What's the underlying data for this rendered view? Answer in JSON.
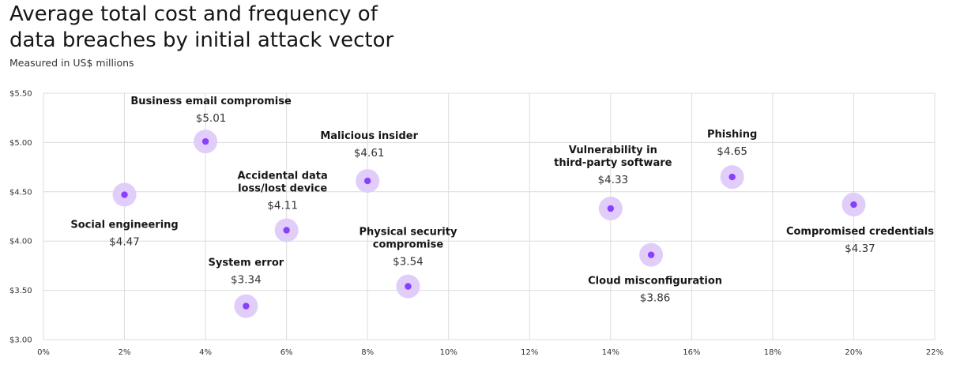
{
  "header": {
    "title_line1": "Average total cost and frequency of",
    "title_line2": "data breaches by initial attack vector",
    "subtitle": "Measured in US$ millions"
  },
  "colors": {
    "halo": "#e1cdfa",
    "dot": "#8a3ffc",
    "grid": "#dcdcdc"
  },
  "chart_data": {
    "type": "scatter",
    "title": "Average total cost and frequency of data breaches by initial attack vector",
    "subtitle": "Measured in US$ millions",
    "xlabel": "",
    "ylabel": "",
    "xlim": [
      0,
      22
    ],
    "ylim": [
      3.0,
      5.5
    ],
    "x_ticks": [
      0,
      2,
      4,
      6,
      8,
      10,
      12,
      14,
      16,
      18,
      20,
      22
    ],
    "x_tick_labels": [
      "0%",
      "2%",
      "4%",
      "6%",
      "8%",
      "10%",
      "12%",
      "14%",
      "16%",
      "18%",
      "20%",
      "22%"
    ],
    "y_ticks": [
      3.0,
      3.5,
      4.0,
      4.5,
      5.0,
      5.5
    ],
    "y_tick_labels": [
      "$3.00",
      "$3.50",
      "$4.00",
      "$4.50",
      "$5.00",
      "$5.50"
    ],
    "grid": true,
    "points": [
      {
        "name_lines": [
          "Social engineering"
        ],
        "value_label": "$4.47",
        "x": 2,
        "y": 4.47
      },
      {
        "name_lines": [
          "Business email compromise"
        ],
        "value_label": "$5.01",
        "x": 4,
        "y": 5.01
      },
      {
        "name_lines": [
          "System error"
        ],
        "value_label": "$3.34",
        "x": 5,
        "y": 3.34
      },
      {
        "name_lines": [
          "Accidental data",
          "loss/lost device"
        ],
        "value_label": "$4.11",
        "x": 6,
        "y": 4.11
      },
      {
        "name_lines": [
          "Malicious insider"
        ],
        "value_label": "$4.61",
        "x": 8,
        "y": 4.61
      },
      {
        "name_lines": [
          "Physical  security",
          "compromise"
        ],
        "value_label": "$3.54",
        "x": 9,
        "y": 3.54
      },
      {
        "name_lines": [
          "Vulnerability in",
          "third-party software"
        ],
        "value_label": "$4.33",
        "x": 14,
        "y": 4.33
      },
      {
        "name_lines": [
          "Cloud misconfiguration"
        ],
        "value_label": "$3.86",
        "x": 15,
        "y": 3.86
      },
      {
        "name_lines": [
          "Phishing"
        ],
        "value_label": "$4.65",
        "x": 17,
        "y": 4.65
      },
      {
        "name_lines": [
          "Compromised credentials"
        ],
        "value_label": "$4.37",
        "x": 20,
        "y": 4.37
      }
    ]
  }
}
